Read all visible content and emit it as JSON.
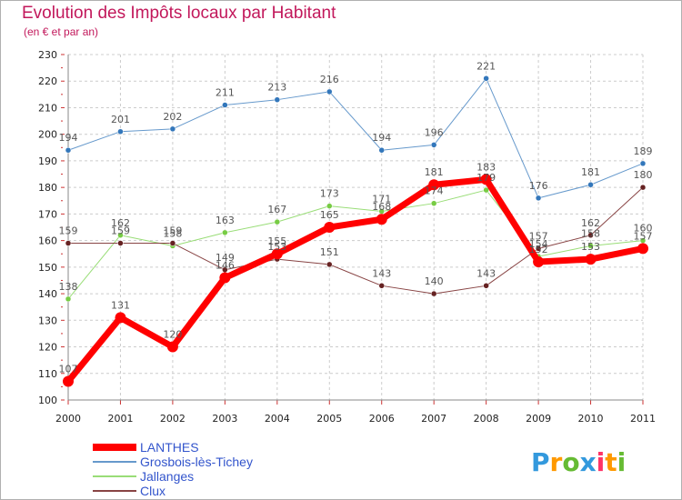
{
  "chart_data": {
    "type": "line",
    "title": "Evolution des Impôts locaux par Habitant",
    "subtitle": "(en € et par an)",
    "xlabel": "",
    "ylabel": "",
    "x": [
      "2000",
      "2001",
      "2002",
      "2003",
      "2004",
      "2005",
      "2006",
      "2007",
      "2008",
      "2009",
      "2010",
      "2011"
    ],
    "ylim": [
      100,
      230
    ],
    "yticks": [
      "100",
      "110",
      "120",
      "130",
      "140",
      "150",
      "160",
      "170",
      "180",
      "190",
      "200",
      "210",
      "220",
      "230"
    ],
    "grid": true,
    "legend_position": "bottom-left",
    "series": [
      {
        "name": "Grosbois-lès-Tichey",
        "color": "#6699cc",
        "marker": "#3377bb",
        "width": 1,
        "values": [
          194,
          201,
          202,
          211,
          213,
          216,
          194,
          196,
          221,
          176,
          181,
          189
        ]
      },
      {
        "name": "Jallanges",
        "color": "#99dd77",
        "marker": "#77cc44",
        "width": 1,
        "values": [
          138,
          162,
          158,
          163,
          167,
          173,
          171,
          174,
          179,
          154,
          158,
          160
        ]
      },
      {
        "name": "Clux",
        "color": "#884444",
        "marker": "#662222",
        "width": 1,
        "values": [
          159,
          159,
          159,
          149,
          153,
          151,
          143,
          140,
          143,
          157,
          162,
          180
        ]
      },
      {
        "name": "LANTHES",
        "color": "#ff0000",
        "marker": "#ff0000",
        "width": 7,
        "values": [
          107,
          131,
          120,
          146,
          155,
          165,
          168,
          181,
          183,
          152,
          153,
          157
        ]
      }
    ],
    "data_labels": [
      [
        "194",
        "201",
        "202",
        "211",
        "213",
        "216",
        "194",
        "196",
        "221",
        "176",
        "181",
        "189"
      ],
      [
        "138",
        "162",
        "158",
        "163",
        "167",
        "173",
        "171",
        "174",
        "179",
        "154",
        "158",
        "160"
      ],
      [
        "159",
        "159",
        "159",
        "149",
        "153",
        "151",
        "143",
        "140",
        "143",
        "157",
        "162",
        "180"
      ],
      [
        "107",
        "131",
        "120",
        "146",
        "155",
        "165",
        "168",
        "181",
        "183",
        "152",
        "153",
        "157"
      ]
    ],
    "legend_order": [
      "LANTHES",
      "Grosbois-lès-Tichey",
      "Jallanges",
      "Clux"
    ]
  },
  "logo": {
    "letters": [
      "P",
      "r",
      "o",
      "x",
      "i",
      "t",
      "i"
    ],
    "colors": [
      "#3399dd",
      "#ff9900",
      "#66bb33",
      "#3399dd",
      "#ff3366",
      "#ff9900",
      "#66bb33"
    ]
  }
}
